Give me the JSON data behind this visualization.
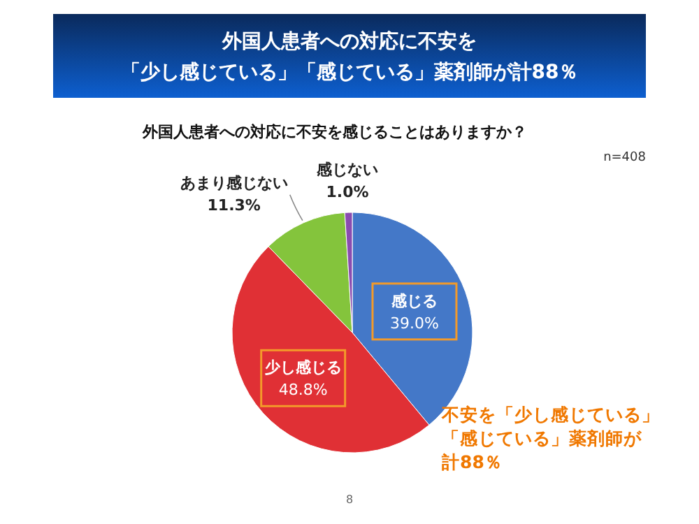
{
  "chart_data": {
    "type": "pie",
    "title": "外国人患者への対応に不安を「少し感じている」「感じている」薬剤師が計88％",
    "subtitle": "外国人患者への対応に不安を感じることはありますか？",
    "categories": [
      "感じる",
      "少し感じる",
      "あまり感じない",
      "感じない"
    ],
    "values": [
      39.0,
      48.8,
      11.3,
      1.0
    ],
    "value_labels": [
      "39.0%",
      "48.8%",
      "11.3%",
      "1.0%"
    ],
    "colors": [
      "#4478c8",
      "#e03035",
      "#84c43c",
      "#8a4cb0"
    ],
    "annotations": [
      "n=408",
      "不安を「少し感じている」",
      "「感じている」薬剤師が",
      "計88％",
      "8"
    ]
  }
}
